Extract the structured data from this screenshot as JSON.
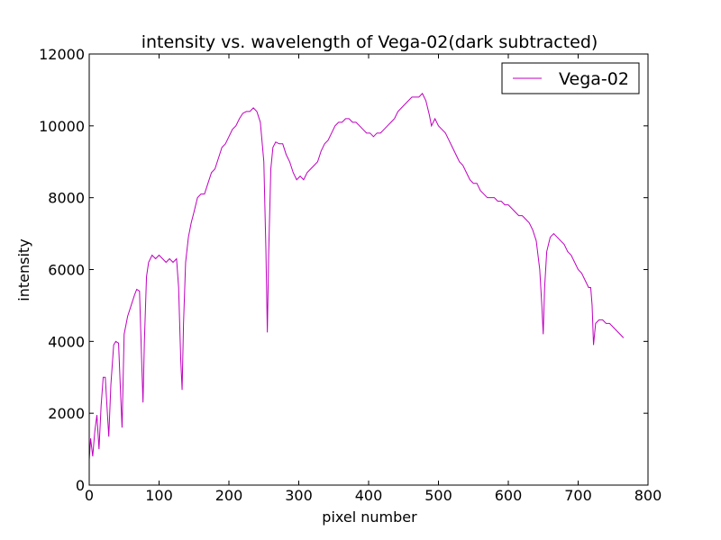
{
  "chart_data": {
    "type": "line",
    "title": "intensity vs. wavelength of Vega-02(dark subtracted)",
    "x_label": "pixel number",
    "y_label": "intensity",
    "xlim": [
      0,
      800
    ],
    "xticks": [
      0,
      100,
      200,
      300,
      400,
      500,
      600,
      700,
      800
    ],
    "ylim": [
      0,
      12000
    ],
    "yticks": [
      0,
      2000,
      4000,
      6000,
      8000,
      10000,
      12000
    ],
    "grid": false,
    "legend": "upper right",
    "x": [
      0,
      2,
      5,
      8,
      11,
      14,
      17,
      20,
      23,
      26,
      28,
      31,
      35,
      38,
      42,
      45,
      47,
      50,
      55,
      60,
      65,
      68,
      72,
      75,
      77,
      79,
      82,
      85,
      90,
      95,
      100,
      105,
      110,
      115,
      120,
      125,
      128,
      131,
      133,
      135,
      138,
      142,
      146,
      150,
      155,
      160,
      165,
      170,
      175,
      180,
      185,
      190,
      195,
      200,
      205,
      210,
      215,
      220,
      225,
      230,
      235,
      240,
      245,
      250,
      253,
      255,
      257,
      260,
      263,
      267,
      272,
      277,
      282,
      287,
      292,
      297,
      302,
      307,
      312,
      317,
      322,
      327,
      332,
      337,
      342,
      347,
      352,
      357,
      362,
      367,
      372,
      377,
      382,
      387,
      392,
      397,
      402,
      407,
      412,
      417,
      422,
      427,
      432,
      437,
      442,
      447,
      452,
      457,
      462,
      467,
      472,
      477,
      482,
      487,
      490,
      495,
      500,
      505,
      510,
      515,
      520,
      525,
      530,
      535,
      540,
      545,
      550,
      555,
      560,
      565,
      570,
      575,
      580,
      585,
      590,
      595,
      600,
      605,
      610,
      615,
      620,
      625,
      630,
      635,
      640,
      645,
      648,
      650,
      652,
      655,
      660,
      665,
      670,
      675,
      680,
      685,
      690,
      695,
      700,
      705,
      710,
      715,
      718,
      720,
      722,
      725,
      730,
      735,
      740,
      745,
      750,
      755,
      760,
      765
    ],
    "series": [
      {
        "name": "Vega-02",
        "color": "#bf00bf",
        "values": [
          700,
          1300,
          800,
          1500,
          1950,
          1000,
          2200,
          3000,
          3000,
          2000,
          1350,
          2800,
          3900,
          4000,
          3950,
          2500,
          1600,
          4200,
          4700,
          5000,
          5300,
          5450,
          5400,
          3500,
          2300,
          4000,
          5800,
          6200,
          6400,
          6300,
          6400,
          6300,
          6200,
          6300,
          6200,
          6300,
          5500,
          3500,
          2650,
          4500,
          6200,
          6900,
          7300,
          7600,
          8000,
          8100,
          8100,
          8400,
          8700,
          8800,
          9100,
          9400,
          9500,
          9700,
          9900,
          10000,
          10200,
          10350,
          10400,
          10400,
          10500,
          10400,
          10100,
          9000,
          6500,
          4250,
          6500,
          8800,
          9400,
          9550,
          9500,
          9500,
          9200,
          9000,
          8700,
          8500,
          8600,
          8500,
          8700,
          8800,
          8900,
          9000,
          9300,
          9500,
          9600,
          9800,
          10000,
          10100,
          10100,
          10200,
          10200,
          10100,
          10100,
          10000,
          9900,
          9800,
          9800,
          9700,
          9800,
          9800,
          9900,
          10000,
          10100,
          10200,
          10400,
          10500,
          10600,
          10700,
          10800,
          10800,
          10800,
          10900,
          10700,
          10300,
          10000,
          10200,
          10000,
          9900,
          9800,
          9600,
          9400,
          9200,
          9000,
          8900,
          8700,
          8500,
          8400,
          8400,
          8200,
          8100,
          8000,
          8000,
          8000,
          7900,
          7900,
          7800,
          7800,
          7700,
          7600,
          7500,
          7500,
          7400,
          7300,
          7100,
          6800,
          6000,
          5000,
          4200,
          5500,
          6500,
          6900,
          7000,
          6900,
          6800,
          6700,
          6500,
          6400,
          6200,
          6000,
          5900,
          5700,
          5500,
          5500,
          5000,
          3900,
          4500,
          4600,
          4600,
          4500,
          4500,
          4400,
          4300,
          4200,
          4100
        ]
      }
    ]
  }
}
